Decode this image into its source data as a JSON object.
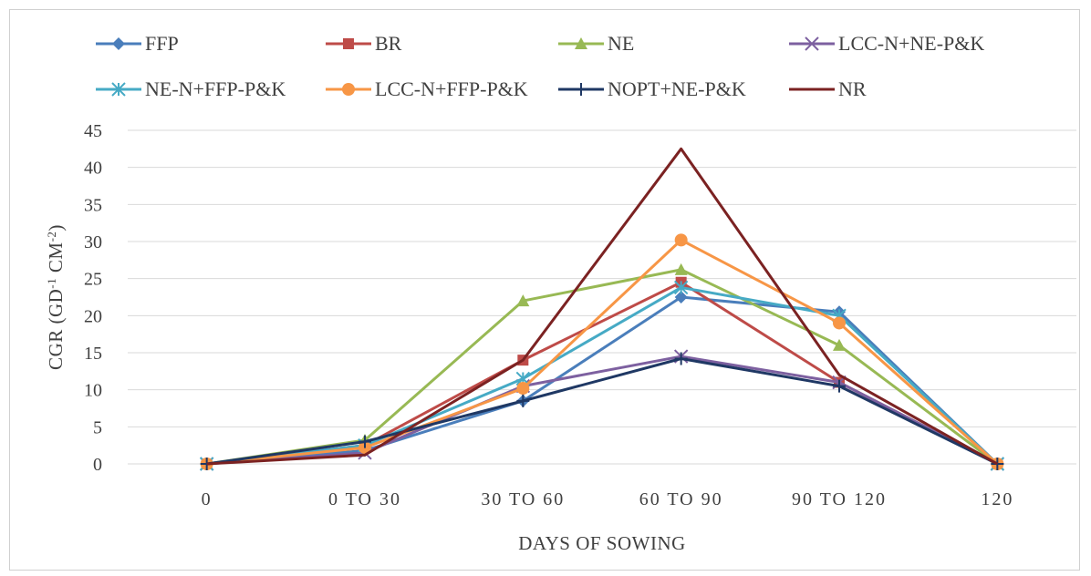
{
  "chart_data": {
    "type": "line",
    "categories": [
      "0",
      "0 TO 30",
      "30 TO 60",
      "60 TO 90",
      "90 TO 120",
      "120"
    ],
    "xlabel": "DAYS OF SOWING",
    "ylabel": "CGR (GD-1 CM-2)",
    "ylabel_parts": {
      "base1": "CGR (GD",
      "sup1": "-1",
      "base2": " CM",
      "sup2": "-2",
      "base3": ")"
    },
    "ylim": [
      0,
      45
    ],
    "yticks": [
      "0",
      "5",
      "10",
      "15",
      "20",
      "25",
      "30",
      "35",
      "40",
      "45"
    ],
    "grid": true,
    "legend_position": "top",
    "series": [
      {
        "name": "FFP",
        "color": "#4a7ebb",
        "marker": "diamond",
        "values": [
          0,
          1.8,
          8.5,
          22.5,
          20.5,
          0
        ]
      },
      {
        "name": "BR",
        "color": "#be4b48",
        "marker": "square",
        "values": [
          0,
          2.5,
          14,
          24.5,
          11,
          0
        ]
      },
      {
        "name": "NE",
        "color": "#98b954",
        "marker": "triangle",
        "values": [
          0,
          3.2,
          22,
          26.2,
          16,
          0
        ]
      },
      {
        "name": "LCC-N+NE-P&K",
        "color": "#7d60a0",
        "marker": "x",
        "values": [
          0,
          1.5,
          10.5,
          14.5,
          11,
          0
        ]
      },
      {
        "name": "NE-N+FFP-P&K",
        "color": "#46aac5",
        "marker": "star",
        "values": [
          0,
          2.5,
          11.5,
          23.8,
          20,
          0
        ]
      },
      {
        "name": "LCC-N+FFP-P&K",
        "color": "#f79646",
        "marker": "circle",
        "values": [
          0,
          2.2,
          10.2,
          30.2,
          19,
          0
        ]
      },
      {
        "name": "NOPT+NE-P&K",
        "color": "#1f3864",
        "marker": "plus",
        "values": [
          0,
          3,
          8.5,
          14.2,
          10.5,
          0
        ]
      },
      {
        "name": "NR",
        "color": "#7b2222",
        "marker": "none",
        "values": [
          0,
          1.2,
          14,
          42.5,
          12,
          0
        ]
      }
    ]
  }
}
